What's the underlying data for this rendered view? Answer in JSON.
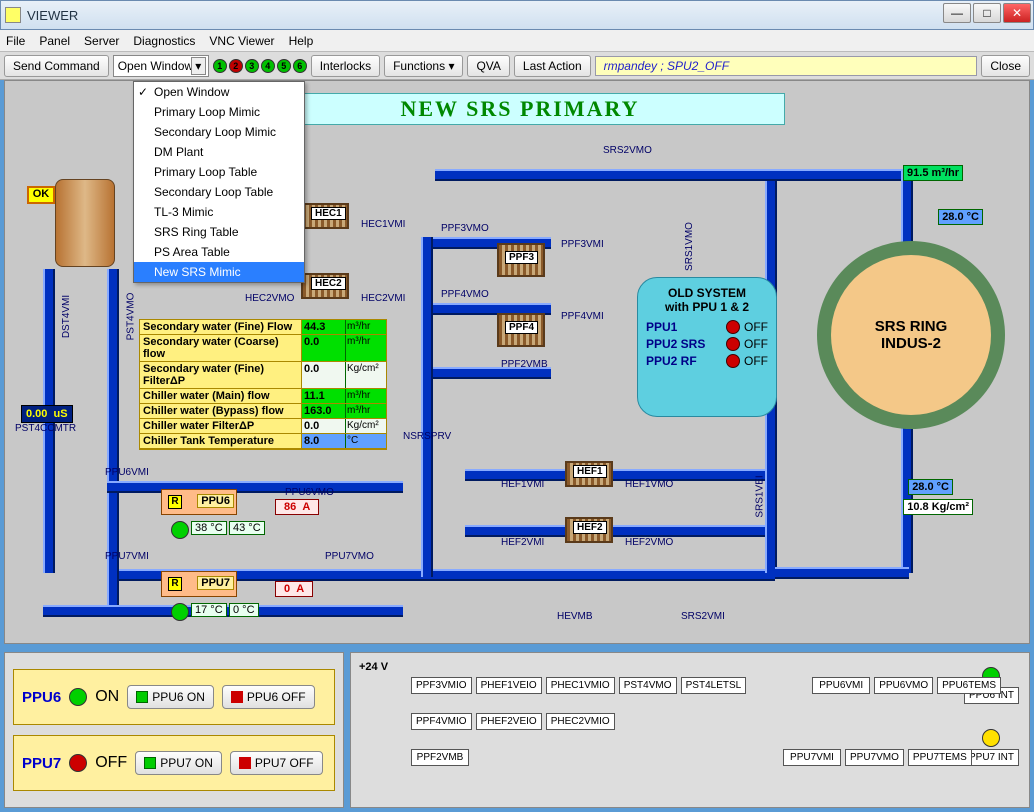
{
  "window": {
    "title": "VIEWER"
  },
  "menu": [
    "File",
    "Panel",
    "Server",
    "Diagnostics",
    "VNC Viewer",
    "Help"
  ],
  "toolbar": {
    "send": "Send Command",
    "open_window": "Open Window",
    "interlocks": "Interlocks",
    "functions": "Functions ▾",
    "qva": "QVA",
    "last_action": "Last Action",
    "status": "rmpandey ; SPU2_OFF",
    "close": "Close",
    "leds": [
      {
        "n": "1",
        "c": "#00c000"
      },
      {
        "n": "2",
        "c": "#c00000"
      },
      {
        "n": "3",
        "c": "#00c000"
      },
      {
        "n": "4",
        "c": "#00c000"
      },
      {
        "n": "5",
        "c": "#00c000"
      },
      {
        "n": "6",
        "c": "#00c000"
      }
    ]
  },
  "dropdown": {
    "items": [
      "Open Window",
      "Primary Loop Mimic",
      "Secondary Loop Mimic",
      "DM Plant",
      "Primary Loop Table",
      "Secondary Loop Table",
      "TL-3 Mimic",
      "SRS Ring Table",
      "PS Area Table",
      "New SRS Mimic"
    ],
    "checked": 0,
    "selected": 9
  },
  "title": "NEW SRS PRIMARY",
  "ok_badge": "OK",
  "ring": {
    "line1": "SRS RING",
    "line2": "INDUS-2",
    "flow": "91.5 m³/hr",
    "tempTop": "28.0 °C",
    "tempBot": "28.0 °C",
    "press": "10.8 Kg/cm²",
    "colors": {
      "outer": "#5a8a5a",
      "inner": "#f4c888"
    }
  },
  "oldsys": {
    "header1": "OLD SYSTEM",
    "header2": "with PPU 1 & 2",
    "rows": [
      {
        "name": "PPU1",
        "state": "OFF",
        "led": "#cc0000"
      },
      {
        "name": "PPU2 SRS",
        "state": "OFF",
        "led": "#cc0000"
      },
      {
        "name": "PPU2 RF",
        "state": "OFF",
        "led": "#cc0000"
      }
    ]
  },
  "params": [
    {
      "label": "Secondary water (Fine) Flow",
      "val": "44.3",
      "unit": "m³/hr",
      "bg": "#00e000"
    },
    {
      "label": "Secondary water (Coarse) flow",
      "val": "0.0",
      "unit": "m³/hr",
      "bg": "#00e000"
    },
    {
      "label": "Secondary water (Fine) FilterΔP",
      "val": "0.0",
      "unit": "Kg/cm²",
      "bg": "#f0f8f0"
    },
    {
      "label": "Chiller water (Main) flow",
      "val": "11.1",
      "unit": "m³/hr",
      "bg": "#00e000"
    },
    {
      "label": "Chiller water (Bypass) flow",
      "val": "163.0",
      "unit": "m³/hr",
      "bg": "#00e000"
    },
    {
      "label": "Chiller water FilterΔP",
      "val": "0.0",
      "unit": "Kg/cm²",
      "bg": "#f0f8f0"
    },
    {
      "label": "Chiller Tank Temperature",
      "val": "8.0",
      "unit": "°C",
      "bg": "#60a0ff"
    }
  ],
  "cond": {
    "val": "0.00",
    "unit": "uS",
    "label": "PST4CCMTR"
  },
  "hex": {
    "HEC1": "HEC1",
    "HEC2": "HEC2",
    "PPF3": "PPF3",
    "PPF4": "PPF4",
    "HEF1": "HEF1",
    "HEF2": "HEF2"
  },
  "valves": [
    "SRS2VMO",
    "PPF3VMO",
    "PPF3VMI",
    "PPF4VMO",
    "PPF4VMI",
    "PPF2VMB",
    "HEC1VMI",
    "HEC2VMO",
    "HEC2VMI",
    "HEF1VMI",
    "HEF1VMO",
    "HEF2VMI",
    "HEF2VMO",
    "HEVMB",
    "SRS2VMI",
    "SRS1VMO",
    "SRS1VEI",
    "PPU6VMI",
    "PPU6VMO",
    "PPU7VMI",
    "PPU7VMO",
    "NSRSPRV",
    "DST4VMI",
    "PST4VMO"
  ],
  "ppu6": {
    "name": "PPU6",
    "amps": "86",
    "ampsU": "A",
    "t1": "38 °C",
    "t2": "43 °C",
    "led": "#00d000"
  },
  "ppu7": {
    "name": "PPU7",
    "amps": "0",
    "ampsU": "A",
    "t1": "17 °C",
    "t2": "0 °C",
    "led": "#00d000"
  },
  "bottom": {
    "ppu6": {
      "name": "PPU6",
      "state": "ON",
      "led": "#00d000",
      "on": "PPU6 ON",
      "off": "PPU6 OFF"
    },
    "ppu7": {
      "name": "PPU7",
      "state": "OFF",
      "led": "#cc0000",
      "on": "PPU7 ON",
      "off": "PPU7 OFF"
    },
    "volt": "+24 V",
    "row1": [
      "PPF3VMIO",
      "PHEF1VEIO",
      "PHEC1VMIO",
      "PST4VMO",
      "PST4LETSL",
      "",
      "PPU6VMI",
      "PPU6VMO",
      "PPU6TEMS"
    ],
    "row2": [
      "PPF4VMIO",
      "PHEF2VEIO",
      "PHEC2VMIO"
    ],
    "row3": [
      "PPF2VMB",
      "",
      "",
      "",
      "",
      "",
      "PPU7VMI",
      "PPU7VMO",
      "PPU7TEMS"
    ],
    "int6": "PPU6 INT",
    "int7": "PPU7 INT",
    "led6": "#00d000",
    "led7": "#ffe000"
  },
  "colors": {
    "pipe": "#0030c0",
    "canvas": "#c8c8c8",
    "title_bg": "#ccffff",
    "title_fg": "#008800"
  }
}
